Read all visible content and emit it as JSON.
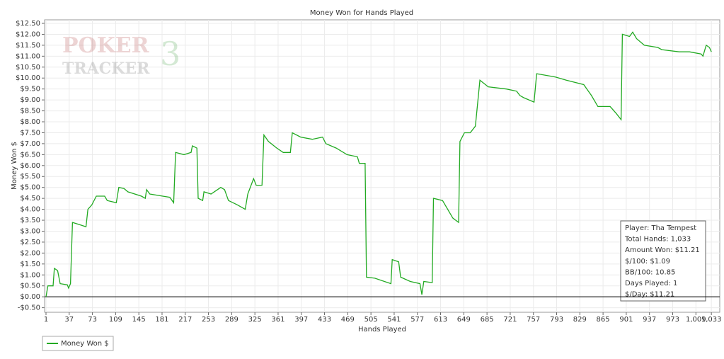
{
  "chart_data": {
    "type": "line",
    "title": "Money Won for Hands Played",
    "x_label": "Hands Played",
    "y_label": "Money Won $",
    "watermark": [
      "POKER",
      "TRACKER",
      "3"
    ],
    "xlim": [
      1,
      1046
    ],
    "ylim": [
      -0.5,
      12.5
    ],
    "xticks": [
      1,
      37,
      73,
      109,
      145,
      181,
      217,
      253,
      289,
      325,
      361,
      397,
      433,
      469,
      505,
      541,
      577,
      613,
      649,
      685,
      721,
      757,
      793,
      829,
      865,
      901,
      937,
      973,
      {
        "value": 1009,
        "label": "1,009"
      },
      {
        "value": 1033,
        "label": "1,033"
      }
    ],
    "yticks": [
      {
        "value": -0.5,
        "label": "-$0.50"
      },
      {
        "value": 0,
        "label": "$0.00"
      },
      {
        "value": 0.5,
        "label": "$0.50"
      },
      {
        "value": 1,
        "label": "$1.00"
      },
      {
        "value": 1.5,
        "label": "$1.50"
      },
      {
        "value": 2,
        "label": "$2.00"
      },
      {
        "value": 2.5,
        "label": "$2.50"
      },
      {
        "value": 3,
        "label": "$3.00"
      },
      {
        "value": 3.5,
        "label": "$3.50"
      },
      {
        "value": 4,
        "label": "$4.00"
      },
      {
        "value": 4.5,
        "label": "$4.50"
      },
      {
        "value": 5,
        "label": "$5.00"
      },
      {
        "value": 5.5,
        "label": "$5.50"
      },
      {
        "value": 6,
        "label": "$6.00"
      },
      {
        "value": 6.5,
        "label": "$6.50"
      },
      {
        "value": 7,
        "label": "$7.00"
      },
      {
        "value": 7.5,
        "label": "$7.50"
      },
      {
        "value": 8,
        "label": "$8.00"
      },
      {
        "value": 8.5,
        "label": "$8.50"
      },
      {
        "value": 9,
        "label": "$9.00"
      },
      {
        "value": 9.5,
        "label": "$9.50"
      },
      {
        "value": 10,
        "label": "$10.00"
      },
      {
        "value": 10.5,
        "label": "$10.50"
      },
      {
        "value": 11,
        "label": "$11.00"
      },
      {
        "value": 11.5,
        "label": "$11.50"
      },
      {
        "value": 12,
        "label": "$12.00"
      },
      {
        "value": 12.5,
        "label": "$12.50"
      }
    ],
    "grid": true,
    "x": [
      1,
      4,
      12,
      14,
      19,
      23,
      34,
      36,
      39,
      42,
      53,
      63,
      66,
      72,
      79,
      92,
      96,
      110,
      114,
      122,
      128,
      149,
      155,
      157,
      162,
      182,
      193,
      199,
      202,
      215,
      226,
      228,
      235,
      237,
      244,
      246,
      257,
      272,
      278,
      284,
      298,
      310,
      314,
      323,
      327,
      336,
      339,
      346,
      359,
      369,
      380,
      383,
      396,
      414,
      430,
      435,
      451,
      468,
      484,
      487,
      496,
      498,
      511,
      536,
      538,
      548,
      551,
      566,
      581,
      584,
      587,
      600,
      602,
      616,
      632,
      641,
      643,
      650,
      659,
      667,
      674,
      687,
      715,
      731,
      736,
      742,
      758,
      762,
      781,
      791,
      808,
      835,
      847,
      857,
      876,
      885,
      893,
      895,
      906,
      911,
      917,
      929,
      950,
      956,
      983,
      999,
      1017,
      1020,
      1023,
      1025,
      1030,
      1033
    ],
    "series": [
      {
        "name": "Money Won $",
        "color": "#22aa22",
        "values": [
          0,
          0.5,
          0.5,
          1.3,
          1.2,
          0.6,
          0.55,
          0.4,
          0.6,
          3.4,
          3.3,
          3.2,
          4.0,
          4.2,
          4.6,
          4.6,
          4.4,
          4.3,
          5.0,
          4.95,
          4.8,
          4.6,
          4.5,
          4.9,
          4.7,
          4.6,
          4.55,
          4.3,
          6.6,
          6.5,
          6.6,
          6.9,
          6.8,
          4.5,
          4.4,
          4.8,
          4.7,
          5.0,
          4.9,
          4.4,
          4.2,
          4.0,
          4.7,
          5.4,
          5.1,
          5.1,
          7.4,
          7.1,
          6.8,
          6.6,
          6.6,
          7.5,
          7.3,
          7.2,
          7.3,
          7.0,
          6.8,
          6.5,
          6.4,
          6.1,
          6.1,
          0.9,
          0.85,
          0.6,
          1.7,
          1.6,
          0.9,
          0.7,
          0.6,
          0.1,
          0.7,
          0.65,
          4.5,
          4.4,
          3.6,
          3.4,
          7.1,
          7.5,
          7.5,
          7.8,
          9.9,
          9.6,
          9.5,
          9.4,
          9.2,
          9.1,
          8.9,
          10.2,
          10.1,
          10.05,
          9.9,
          9.7,
          9.2,
          8.7,
          8.7,
          8.4,
          8.1,
          12.0,
          11.9,
          12.1,
          11.8,
          11.5,
          11.4,
          11.3,
          11.2,
          11.2,
          11.1,
          11.0,
          11.3,
          11.5,
          11.4,
          11.2
        ]
      }
    ],
    "info_box": [
      "Player: Tha Tempest",
      "Total Hands: 1,033",
      "Amount Won: $11.21",
      "$/100: $1.09",
      "BB/100: 10.85",
      "Days Played: 1",
      "$/Day: $11.21"
    ]
  }
}
